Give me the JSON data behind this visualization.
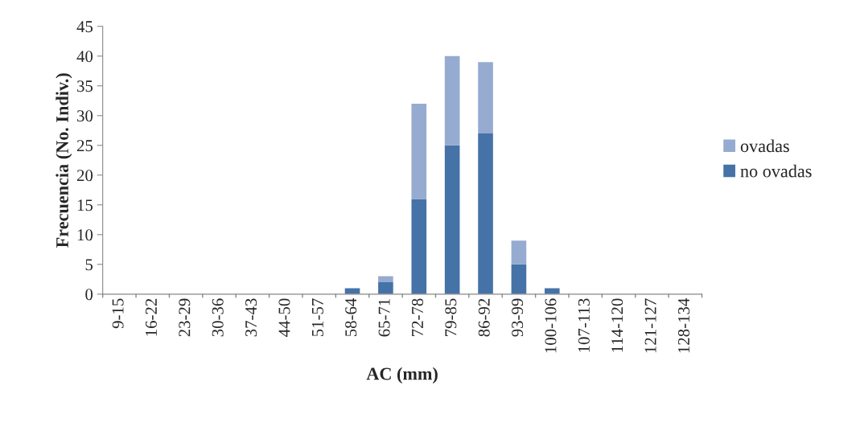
{
  "chart_data": {
    "type": "bar",
    "stacked": true,
    "xlabel": "AC (mm)",
    "ylabel": "Frecuencia (No. Indiv.)",
    "categories": [
      "9-15",
      "16-22",
      "23-29",
      "30-36",
      "37-43",
      "44-50",
      "51-57",
      "58-64",
      "65-71",
      "72-78",
      "79-85",
      "86-92",
      "93-99",
      "100-106",
      "107-113",
      "114-120",
      "121-127",
      "128-134"
    ],
    "series": [
      {
        "name": "no ovadas",
        "color": "#4572a7",
        "values": [
          0,
          0,
          0,
          0,
          0,
          0,
          0,
          1,
          2,
          16,
          25,
          27,
          5,
          1,
          0,
          0,
          0,
          0
        ]
      },
      {
        "name": "ovadas",
        "color": "#95abd0",
        "values": [
          0,
          0,
          0,
          0,
          0,
          0,
          0,
          0,
          1,
          16,
          15,
          12,
          4,
          0,
          0,
          0,
          0,
          0
        ]
      }
    ],
    "ylim": [
      0,
      45
    ],
    "yticks": [
      0,
      5,
      10,
      15,
      20,
      25,
      30,
      35,
      40,
      45
    ],
    "grid": false,
    "legend": "right"
  }
}
